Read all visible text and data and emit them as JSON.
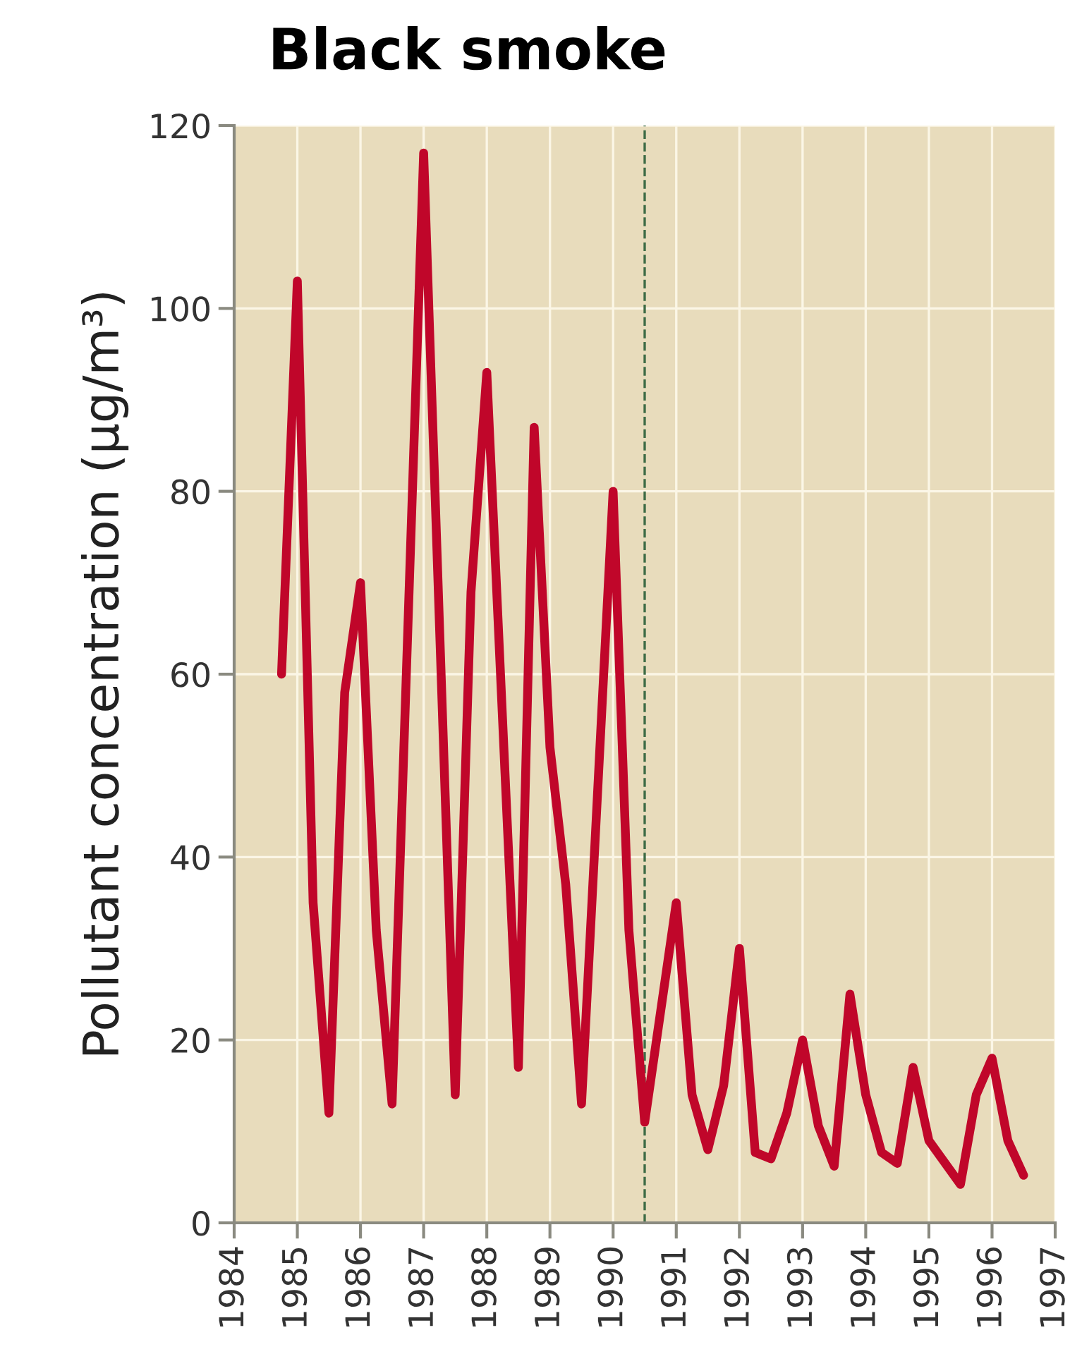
{
  "chart_data": {
    "type": "line",
    "title": "Black smoke",
    "ylabel": "Pollutant concentration (µg/m³)",
    "series": [
      {
        "color": "#c0062a",
        "x": [
          1984.75,
          1985,
          1985.25,
          1985.5,
          1985.75,
          1986,
          1986.25,
          1986.5,
          1987,
          1987.5,
          1987.75,
          1988,
          1988.5,
          1988.75,
          1989,
          1989.25,
          1989.5,
          1990,
          1990.25,
          1990.5,
          1991,
          1991.25,
          1991.5,
          1991.75,
          1992,
          1992.25,
          1992.5,
          1992.75,
          1993,
          1993.25,
          1993.5,
          1993.75,
          1994,
          1994.25,
          1994.5,
          1994.75,
          1995,
          1995.5,
          1995.75,
          1996,
          1996.25,
          1996.5
        ],
        "values": [
          60,
          103,
          35,
          12,
          58,
          70,
          32,
          13,
          117,
          14,
          69,
          93,
          17,
          87,
          52,
          37,
          13,
          80,
          32,
          11,
          35,
          14,
          8,
          15,
          30,
          7.7,
          7,
          12,
          20,
          10.6,
          6.2,
          25,
          14,
          7.7,
          6.5,
          17,
          9,
          4.2,
          14,
          18,
          9,
          5.2
        ]
      }
    ],
    "xlim": [
      1984,
      1997
    ],
    "xticks": [
      1984,
      1985,
      1986,
      1987,
      1988,
      1989,
      1990,
      1991,
      1992,
      1993,
      1994,
      1995,
      1996,
      1997
    ],
    "ylim": [
      0,
      120
    ],
    "yticks": [
      0,
      20,
      40,
      60,
      80,
      100,
      120
    ],
    "grid": true,
    "marker": "none",
    "line_style": "solid",
    "ref_lines": [
      {
        "axis": "x",
        "value": 1990.5,
        "color": "#3d6b45",
        "line_style": "dashed"
      }
    ]
  }
}
